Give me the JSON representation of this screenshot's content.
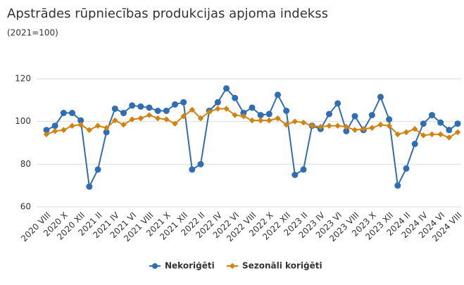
{
  "chart_data": {
    "type": "line",
    "title": "Apstrādes rūpniecības produkcijas apjoma indekss",
    "subtitle": "(2021=100)",
    "categories": [
      "2020 VIII",
      null,
      "2020 X",
      null,
      "2020 XII",
      null,
      "2021 II",
      null,
      "2021 IV",
      null,
      "2021 VI",
      null,
      "2021 VIII",
      null,
      "2021 X",
      null,
      "2021 XII",
      null,
      "2022 II",
      null,
      "2022 IV",
      null,
      "2022 VI",
      null,
      "2022 VIII",
      null,
      "2022 X",
      null,
      "2022 XII",
      null,
      "2023 II",
      null,
      "2023 IV",
      null,
      "2023 VI",
      null,
      "2023 VIII",
      null,
      "2023 X",
      null,
      "2023 XII",
      null,
      "2024 II",
      null,
      "2024 IV",
      null,
      "2024 VI",
      null,
      "2024 VIII"
    ],
    "series": [
      {
        "name": "Nekoriģēti",
        "color": "#2f6db5",
        "values": [
          96,
          98,
          104,
          104,
          100.5,
          69.5,
          77.5,
          95,
          106,
          104,
          107.5,
          107,
          106.5,
          105,
          105,
          108,
          109,
          77.5,
          80,
          105,
          109,
          115.5,
          111,
          104,
          106.5,
          103,
          103.5,
          112.5,
          105,
          75,
          77.5,
          98,
          96.5,
          103.5,
          108.5,
          95.5,
          102.5,
          96,
          103,
          111.5,
          101,
          70,
          78,
          89.5,
          99,
          103,
          99.5,
          96,
          99
        ]
      },
      {
        "name": "Sezonāli koriģēti",
        "color": "#d4820e",
        "values": [
          94,
          95.5,
          96,
          98,
          98.5,
          96,
          98,
          97,
          100.5,
          98.5,
          101,
          101.5,
          103,
          101.5,
          101,
          99,
          102.5,
          105.5,
          101.5,
          104.5,
          106,
          106,
          103,
          102.5,
          100.5,
          100.5,
          100.5,
          101.5,
          98.5,
          100,
          99.5,
          98,
          97.5,
          98,
          98,
          97.5,
          96,
          96.5,
          97,
          98.5,
          98,
          94,
          95,
          96.5,
          93.5,
          94,
          94,
          92.5,
          95
        ]
      }
    ],
    "ylim": [
      60,
      120
    ],
    "yticks": [
      60,
      80,
      100,
      120
    ],
    "grid": true
  }
}
